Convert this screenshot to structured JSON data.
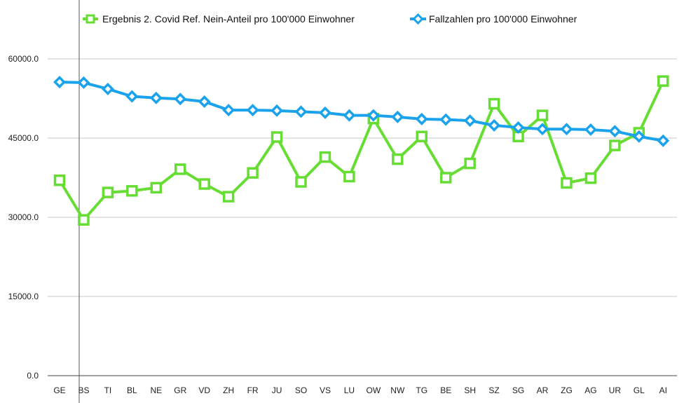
{
  "chart_data": {
    "type": "line",
    "categories": [
      "GE",
      "BS",
      "TI",
      "BL",
      "NE",
      "GR",
      "VD",
      "ZH",
      "FR",
      "JU",
      "SO",
      "VS",
      "LU",
      "OW",
      "NW",
      "TG",
      "BE",
      "SH",
      "SZ",
      "SG",
      "AR",
      "ZG",
      "AG",
      "UR",
      "GL",
      "AI"
    ],
    "series": [
      {
        "name": "Ergebnis 2. Covid Ref. Nein-Anteil pro 100'000 Einwohner",
        "color": "#66dd33",
        "marker": "square",
        "values": [
          37000,
          29500,
          34700,
          35000,
          35600,
          39100,
          36300,
          33900,
          38400,
          45200,
          36700,
          41400,
          37700,
          48700,
          41000,
          45300,
          37500,
          40200,
          51500,
          45300,
          49300,
          36500,
          37400,
          43600,
          46000,
          55800
        ]
      },
      {
        "name": "Fallzahlen pro 100'000 Einwohner",
        "color": "#1aa3ec",
        "marker": "diamond",
        "values": [
          55600,
          55500,
          54300,
          52900,
          52600,
          52400,
          51900,
          50300,
          50300,
          50200,
          50000,
          49800,
          49300,
          49300,
          49000,
          48600,
          48500,
          48300,
          47400,
          47000,
          46700,
          46700,
          46600,
          46300,
          45300,
          44500
        ]
      }
    ],
    "yticks": [
      "0.0",
      "15000.0",
      "30000.0",
      "45000.0",
      "60000.0"
    ],
    "ylim": [
      0,
      60000
    ],
    "grid": true,
    "legend": "top"
  }
}
